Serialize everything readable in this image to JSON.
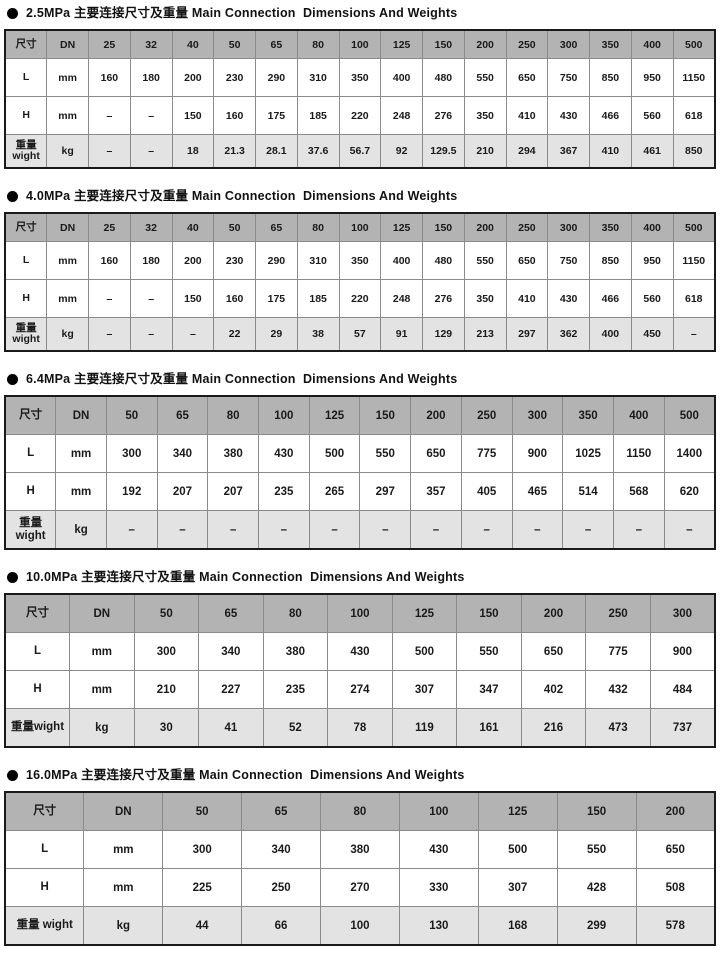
{
  "styles": {
    "header_bg": "#b3b3b3",
    "shaded_row_bg": "#e3e3e3",
    "outer_border": "#1a1a1a",
    "grid_line": "#8a8a8a"
  },
  "tables": [
    {
      "pressure": "2.5MPa",
      "title": "2.5MPa 主要连接尺寸及重量 Main Connection  Dimensions And Weights",
      "corner_label": "尺寸",
      "dn_label": "DN",
      "dn_sizes": [
        "25",
        "32",
        "40",
        "50",
        "65",
        "80",
        "100",
        "125",
        "150",
        "200",
        "250",
        "300",
        "350",
        "400",
        "500"
      ],
      "rows": [
        {
          "label": "L",
          "unit": "mm",
          "shaded": false,
          "values": [
            "160",
            "180",
            "200",
            "230",
            "290",
            "310",
            "350",
            "400",
            "480",
            "550",
            "650",
            "750",
            "850",
            "950",
            "1150"
          ]
        },
        {
          "label": "H",
          "unit": "mm",
          "shaded": false,
          "values": [
            "–",
            "–",
            "150",
            "160",
            "175",
            "185",
            "220",
            "248",
            "276",
            "350",
            "410",
            "430",
            "466",
            "560",
            "618"
          ]
        },
        {
          "label": "重量\nwight",
          "unit": "kg",
          "shaded": true,
          "values": [
            "–",
            "–",
            "18",
            "21.3",
            "28.1",
            "37.6",
            "56.7",
            "92",
            "129.5",
            "210",
            "294",
            "367",
            "410",
            "461",
            "850"
          ]
        }
      ]
    },
    {
      "pressure": "4.0MPa",
      "title": "4.0MPa 主要连接尺寸及重量 Main Connection  Dimensions And Weights",
      "corner_label": "尺寸",
      "dn_label": "DN",
      "dn_sizes": [
        "25",
        "32",
        "40",
        "50",
        "65",
        "80",
        "100",
        "125",
        "150",
        "200",
        "250",
        "300",
        "350",
        "400",
        "500"
      ],
      "rows": [
        {
          "label": "L",
          "unit": "mm",
          "shaded": false,
          "values": [
            "160",
            "180",
            "200",
            "230",
            "290",
            "310",
            "350",
            "400",
            "480",
            "550",
            "650",
            "750",
            "850",
            "950",
            "1150"
          ]
        },
        {
          "label": "H",
          "unit": "mm",
          "shaded": false,
          "values": [
            "–",
            "–",
            "150",
            "160",
            "175",
            "185",
            "220",
            "248",
            "276",
            "350",
            "410",
            "430",
            "466",
            "560",
            "618"
          ]
        },
        {
          "label": "重量\nwight",
          "unit": "kg",
          "shaded": true,
          "values": [
            "–",
            "–",
            "–",
            "22",
            "29",
            "38",
            "57",
            "91",
            "129",
            "213",
            "297",
            "362",
            "400",
            "450",
            "–"
          ]
        }
      ]
    },
    {
      "pressure": "6.4MPa",
      "title": "6.4MPa 主要连接尺寸及重量 Main Connection  Dimensions And Weights",
      "corner_label": "尺寸",
      "dn_label": "DN",
      "dn_sizes": [
        "50",
        "65",
        "80",
        "100",
        "125",
        "150",
        "200",
        "250",
        "300",
        "350",
        "400",
        "500"
      ],
      "rows": [
        {
          "label": "L",
          "unit": "mm",
          "shaded": false,
          "values": [
            "300",
            "340",
            "380",
            "430",
            "500",
            "550",
            "650",
            "775",
            "900",
            "1025",
            "1150",
            "1400"
          ]
        },
        {
          "label": "H",
          "unit": "mm",
          "shaded": false,
          "values": [
            "192",
            "207",
            "207",
            "235",
            "265",
            "297",
            "357",
            "405",
            "465",
            "514",
            "568",
            "620"
          ]
        },
        {
          "label": "重量\nwight",
          "unit": "kg",
          "shaded": true,
          "values": [
            "–",
            "–",
            "–",
            "–",
            "–",
            "–",
            "–",
            "–",
            "–",
            "–",
            "–",
            "–"
          ]
        }
      ]
    },
    {
      "pressure": "10.0MPa",
      "title": "10.0MPa 主要连接尺寸及重量 Main Connection  Dimensions And Weights",
      "corner_label": "尺寸",
      "dn_label": "DN",
      "dn_sizes": [
        "50",
        "65",
        "80",
        "100",
        "125",
        "150",
        "200",
        "250",
        "300"
      ],
      "rows": [
        {
          "label": "L",
          "unit": "mm",
          "shaded": false,
          "values": [
            "300",
            "340",
            "380",
            "430",
            "500",
            "550",
            "650",
            "775",
            "900"
          ]
        },
        {
          "label": "H",
          "unit": "mm",
          "shaded": false,
          "values": [
            "210",
            "227",
            "235",
            "274",
            "307",
            "347",
            "402",
            "432",
            "484"
          ]
        },
        {
          "label": "重量wight",
          "unit": "kg",
          "shaded": true,
          "values": [
            "30",
            "41",
            "52",
            "78",
            "119",
            "161",
            "216",
            "473",
            "737"
          ]
        }
      ]
    },
    {
      "pressure": "16.0MPa",
      "title": "16.0MPa 主要连接尺寸及重量 Main Connection  Dimensions And Weights",
      "corner_label": "尺寸",
      "dn_label": "DN",
      "dn_sizes": [
        "50",
        "65",
        "80",
        "100",
        "125",
        "150",
        "200"
      ],
      "rows": [
        {
          "label": "L",
          "unit": "mm",
          "shaded": false,
          "values": [
            "300",
            "340",
            "380",
            "430",
            "500",
            "550",
            "650"
          ]
        },
        {
          "label": "H",
          "unit": "mm",
          "shaded": false,
          "values": [
            "225",
            "250",
            "270",
            "330",
            "307",
            "428",
            "508"
          ]
        },
        {
          "label": "重量 wight",
          "unit": "kg",
          "shaded": true,
          "values": [
            "44",
            "66",
            "100",
            "130",
            "168",
            "299",
            "578"
          ]
        }
      ]
    }
  ]
}
